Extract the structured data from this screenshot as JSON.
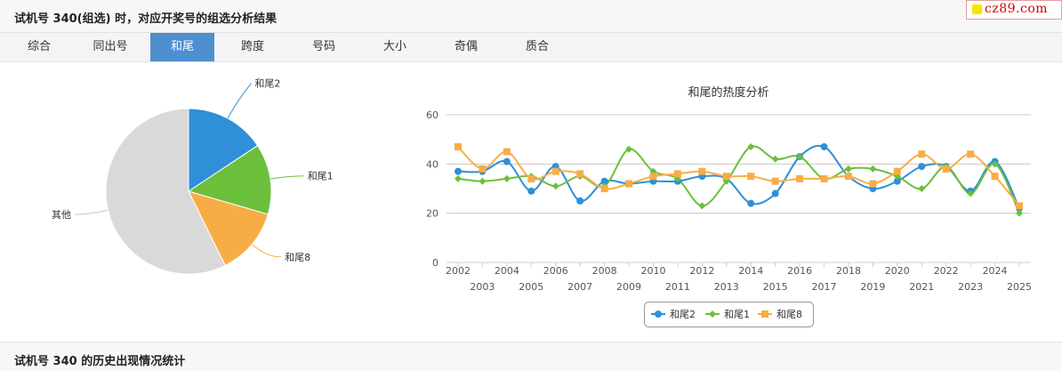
{
  "header": {
    "title": "试机号 340(组选) 时，对应开奖号的组选分析结果"
  },
  "logo": {
    "text": "cz89.com"
  },
  "tabs": [
    {
      "label": "综合",
      "active": false
    },
    {
      "label": "同出号",
      "active": false
    },
    {
      "label": "和尾",
      "active": true
    },
    {
      "label": "跨度",
      "active": false
    },
    {
      "label": "号码",
      "active": false
    },
    {
      "label": "大小",
      "active": false
    },
    {
      "label": "奇偶",
      "active": false
    },
    {
      "label": "质合",
      "active": false
    }
  ],
  "footer": {
    "title": "试机号 340 的历史出现情况统计"
  },
  "chart_data": [
    {
      "type": "pie",
      "title": "",
      "slices": [
        {
          "label": "和尾2",
          "value": 15.7,
          "color": "#2f8fd8"
        },
        {
          "label": "和尾1",
          "value": 13.8,
          "color": "#6cbf3a"
        },
        {
          "label": "和尾8",
          "value": 13.2,
          "color": "#f7ad45"
        },
        {
          "label": "其他",
          "value": 57.3,
          "color": "#d9d9d9"
        }
      ]
    },
    {
      "type": "line",
      "title": "和尾的热度分析",
      "x": [
        2002,
        2003,
        2004,
        2005,
        2006,
        2007,
        2008,
        2009,
        2010,
        2011,
        2012,
        2013,
        2014,
        2015,
        2016,
        2017,
        2018,
        2019,
        2020,
        2021,
        2022,
        2023,
        2024,
        2025
      ],
      "ylim": [
        0,
        60
      ],
      "yticks": [
        0,
        20,
        40,
        60
      ],
      "grid": true,
      "legend": "bottom",
      "series": [
        {
          "name": "和尾2",
          "color": "#2f8fd8",
          "marker": "circle",
          "values": [
            37,
            37,
            41,
            29,
            39,
            25,
            33,
            32,
            33,
            33,
            35,
            34,
            24,
            28,
            43,
            47,
            35,
            30,
            33,
            39,
            39,
            29,
            41,
            22
          ]
        },
        {
          "name": "和尾1",
          "color": "#6cbf3a",
          "marker": "diamond",
          "values": [
            34,
            33,
            34,
            35,
            31,
            35,
            31,
            46,
            37,
            34,
            23,
            33,
            47,
            42,
            43,
            34,
            38,
            38,
            35,
            30,
            39,
            28,
            40,
            20
          ]
        },
        {
          "name": "和尾8",
          "color": "#f7ad45",
          "marker": "square",
          "values": [
            47,
            38,
            45,
            34,
            37,
            36,
            30,
            32,
            35,
            36,
            37,
            35,
            35,
            33,
            34,
            34,
            35,
            32,
            37,
            44,
            38,
            44,
            35,
            23
          ]
        }
      ]
    }
  ]
}
